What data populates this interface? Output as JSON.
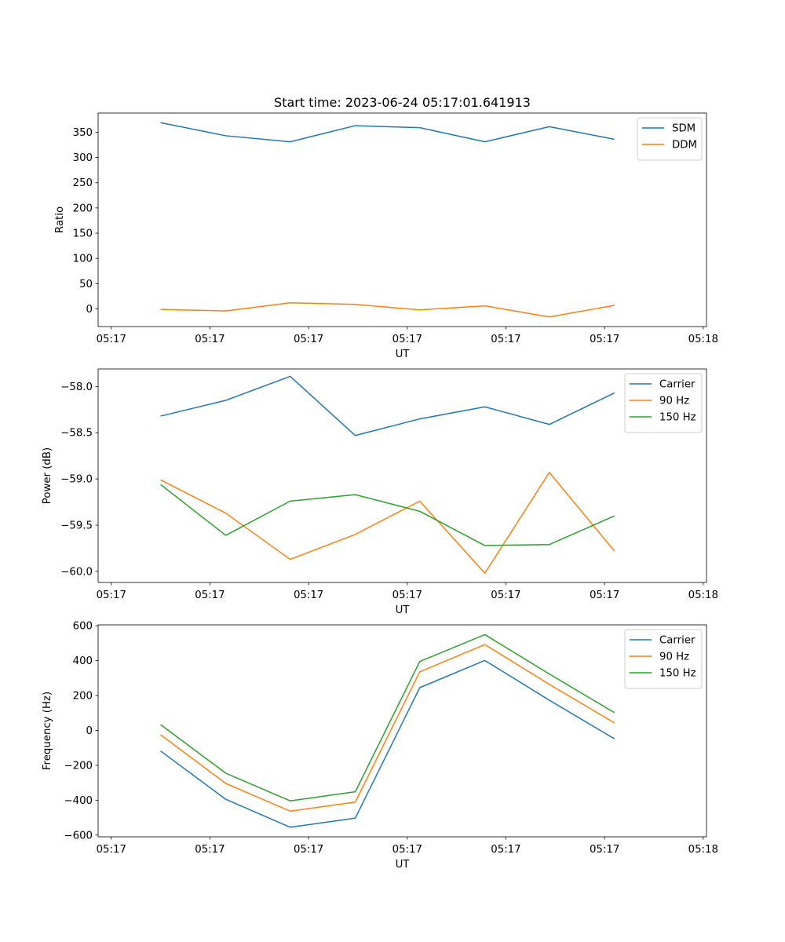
{
  "figure": {
    "title": "Start time: 2023-06-24 05:17:01.641913"
  },
  "colors": {
    "blue": "#1f77b4",
    "orange": "#ff7f0e",
    "green": "#2ca02c"
  },
  "chart_data": [
    {
      "type": "line",
      "title": "Start time: 2023-06-24 05:17:01.641913",
      "xlabel": "UT",
      "ylabel": "Ratio",
      "xlim": [
        -0.2,
        9.05
      ],
      "ylim": [
        -35,
        388
      ],
      "x_ticks": [
        0,
        1.5,
        3,
        4.5,
        6,
        7.5,
        9
      ],
      "x_tick_labels": [
        "05:17",
        "05:17",
        "05:17",
        "05:17",
        "05:17",
        "05:17",
        "05:18"
      ],
      "y_ticks": [
        0,
        50,
        100,
        150,
        200,
        250,
        300,
        350
      ],
      "legend_position": "upper right",
      "x": [
        0.75,
        1.74,
        2.72,
        3.71,
        4.69,
        5.68,
        6.66,
        7.65
      ],
      "series": [
        {
          "name": "SDM",
          "color": "#1f77b4",
          "values": [
            369,
            343,
            331,
            363,
            359,
            331,
            361,
            336
          ]
        },
        {
          "name": "DDM",
          "color": "#ff7f0e",
          "values": [
            -1,
            -4,
            12,
            9,
            -2,
            6,
            -16,
            7
          ]
        }
      ]
    },
    {
      "type": "line",
      "title": "",
      "xlabel": "UT",
      "ylabel": "Power (dB)",
      "xlim": [
        -0.2,
        9.05
      ],
      "ylim": [
        -60.12,
        -57.81
      ],
      "x_ticks": [
        0,
        1.5,
        3,
        4.5,
        6,
        7.5,
        9
      ],
      "x_tick_labels": [
        "05:17",
        "05:17",
        "05:17",
        "05:17",
        "05:17",
        "05:17",
        "05:18"
      ],
      "y_ticks": [
        -60.0,
        -59.5,
        -59.0,
        -58.5,
        -58.0
      ],
      "y_tick_labels": [
        "−60.0",
        "−59.5",
        "−59.0",
        "−58.5",
        "−58.0"
      ],
      "legend_position": "upper right",
      "x": [
        0.75,
        1.74,
        2.72,
        3.71,
        4.69,
        5.68,
        6.66,
        7.65
      ],
      "series": [
        {
          "name": "Carrier",
          "color": "#1f77b4",
          "values": [
            -58.32,
            -58.15,
            -57.89,
            -58.53,
            -58.35,
            -58.22,
            -58.41,
            -58.07
          ]
        },
        {
          "name": "90 Hz",
          "color": "#ff7f0e",
          "values": [
            -59.01,
            -59.37,
            -59.87,
            -59.6,
            -59.24,
            -60.02,
            -58.93,
            -59.78
          ]
        },
        {
          "name": "150 Hz",
          "color": "#2ca02c",
          "values": [
            -59.06,
            -59.61,
            -59.24,
            -59.17,
            -59.35,
            -59.72,
            -59.71,
            -59.4
          ]
        }
      ]
    },
    {
      "type": "line",
      "title": "",
      "xlabel": "UT",
      "ylabel": "Frequency (Hz)",
      "xlim": [
        -0.2,
        9.05
      ],
      "ylim": [
        -610,
        605
      ],
      "x_ticks": [
        0,
        1.5,
        3,
        4.5,
        6,
        7.5,
        9
      ],
      "x_tick_labels": [
        "05:17",
        "05:17",
        "05:17",
        "05:17",
        "05:17",
        "05:17",
        "05:18"
      ],
      "y_ticks": [
        -600,
        -400,
        -200,
        0,
        200,
        400,
        600
      ],
      "y_tick_labels": [
        "−600",
        "−400",
        "−200",
        "0",
        "200",
        "400",
        "600"
      ],
      "legend_position": "upper right",
      "x": [
        0.75,
        1.74,
        2.72,
        3.71,
        4.69,
        5.68,
        6.66,
        7.65
      ],
      "series": [
        {
          "name": "Carrier",
          "color": "#1f77b4",
          "values": [
            -118,
            -395,
            -555,
            -503,
            245,
            401,
            173,
            -48
          ]
        },
        {
          "name": "90 Hz",
          "color": "#ff7f0e",
          "values": [
            -25,
            -304,
            -463,
            -411,
            336,
            492,
            264,
            43
          ]
        },
        {
          "name": "150 Hz",
          "color": "#2ca02c",
          "values": [
            33,
            -245,
            -404,
            -352,
            395,
            549,
            323,
            102
          ]
        }
      ]
    }
  ]
}
